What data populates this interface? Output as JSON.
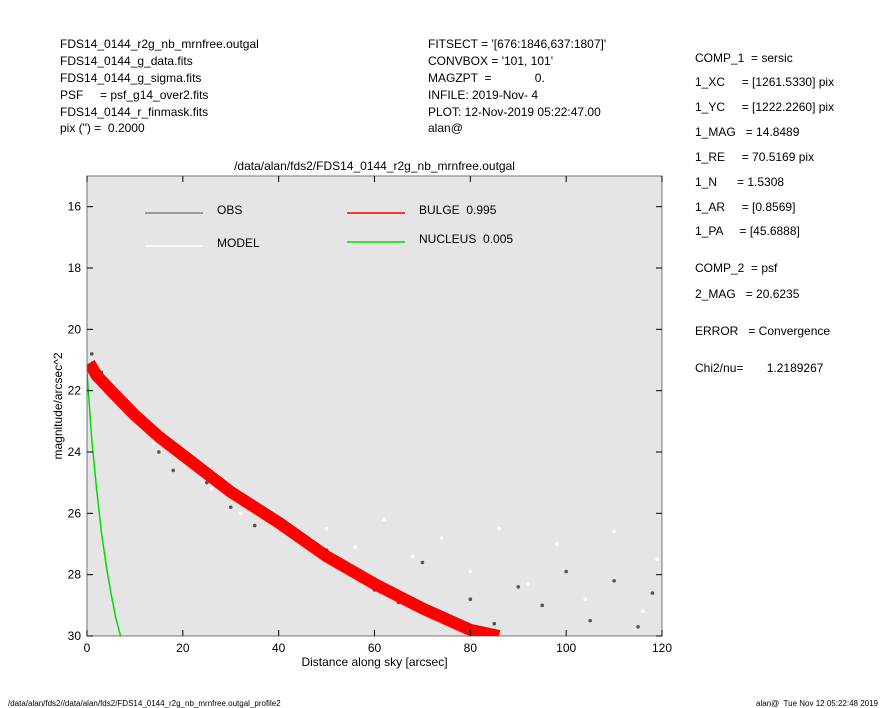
{
  "header_left": [
    "FDS14_0144_r2g_nb_mrnfree.outgal",
    "FDS14_0144_g_data.fits",
    "FDS14_0144_g_sigma.fits",
    "PSF     = psf_g14_over2.fits",
    "FDS14_0144_r_finmask.fits",
    "pix (\") =  0.2000"
  ],
  "header_middle": [
    "FITSECT = '[676:1846,637:1807]'",
    "CONVBOX = '101, 101'",
    "MAGZPT  =             0.",
    "INFILE: 2019-Nov- 4",
    "PLOT: 12-Nov-2019 05:22:47.00",
    "alan@"
  ],
  "parameters": [
    "COMP_1  = sersic",
    "1_XC     = [1261.5330] pix",
    "1_YC     = [1222.2260] pix",
    "1_MAG   = 14.8489",
    "1_RE     = 70.5169 pix",
    "1_N      = 1.5308",
    "1_AR     = [0.8569]",
    "1_PA     = [45.6888]",
    "COMP_2  = psf",
    "2_MAG   = 20.6235",
    "ERROR   = Convergence",
    "Chi2/nu=       1.2189267"
  ],
  "footer_left": "/data/alan/fds2//data/alan/fds2/FDS14_0144_r2g_nb_mrnfree.outgal_profile2",
  "footer_right": "alan@  Tue Nov 12 05:22:48 2019",
  "chart_data": {
    "type": "scatter",
    "title": "/data/alan/fds2/FDS14_0144_r2g_nb_mrnfree.outgal",
    "x_label": "Distance along sky [arcsec]",
    "y_label": "magnitude/arcsec^2",
    "xlim": [
      0,
      120
    ],
    "xticks": [
      0,
      20,
      40,
      60,
      80,
      100,
      120
    ],
    "ylim": [
      30,
      15
    ],
    "yticks": [
      16,
      18,
      20,
      22,
      24,
      26,
      28,
      30
    ],
    "series": [
      {
        "name": "OBS",
        "type": "scatter",
        "color": "#555555",
        "legend_color": "#808080",
        "x": [
          1,
          2,
          3,
          5,
          8,
          12,
          15,
          18,
          22,
          25,
          30,
          35,
          40,
          45,
          50,
          55,
          60,
          65,
          70,
          75,
          80,
          85,
          90,
          95,
          100,
          105,
          110,
          115,
          118
        ],
        "values": [
          20.8,
          21.3,
          21.4,
          21.9,
          22.4,
          23.1,
          24.0,
          24.6,
          24.4,
          25.0,
          25.8,
          26.4,
          26.2,
          26.8,
          27.2,
          28.0,
          28.5,
          28.9,
          27.6,
          29.3,
          28.8,
          29.6,
          28.4,
          29.0,
          27.9,
          29.5,
          28.2,
          29.7,
          28.6
        ]
      },
      {
        "name": "MODEL",
        "type": "scatter",
        "color": "#ffffff",
        "legend_color": "#ffffff",
        "x": [
          3,
          8,
          14,
          20,
          26,
          32,
          38,
          44,
          50,
          56,
          62,
          68,
          74,
          80,
          86,
          92,
          98,
          104,
          110,
          116,
          119
        ],
        "values": [
          21.6,
          22.6,
          23.7,
          24.3,
          25.2,
          26.0,
          25.9,
          26.7,
          26.5,
          27.1,
          26.2,
          27.4,
          26.8,
          27.9,
          26.5,
          28.3,
          27.0,
          28.8,
          26.6,
          29.2,
          27.5
        ]
      },
      {
        "name": "BULGE  0.995",
        "type": "line",
        "color": "#ff0000",
        "legend_color": "#ff0000",
        "x": [
          0.5,
          2,
          5,
          10,
          15,
          20,
          30,
          40,
          50,
          60,
          70,
          80,
          86
        ],
        "values": [
          21.1,
          21.5,
          22.0,
          22.8,
          23.5,
          24.1,
          25.3,
          26.3,
          27.4,
          28.3,
          29.1,
          29.8,
          30
        ]
      },
      {
        "name": "NUCLEUS  0.005",
        "type": "line",
        "color": "#00dd00",
        "legend_color": "#00dd00",
        "x": [
          0,
          0.5,
          1,
          2,
          3,
          4,
          5,
          6,
          7
        ],
        "values": [
          21.4,
          22.5,
          23.6,
          25.2,
          26.6,
          27.7,
          28.6,
          29.4,
          30
        ]
      }
    ]
  }
}
